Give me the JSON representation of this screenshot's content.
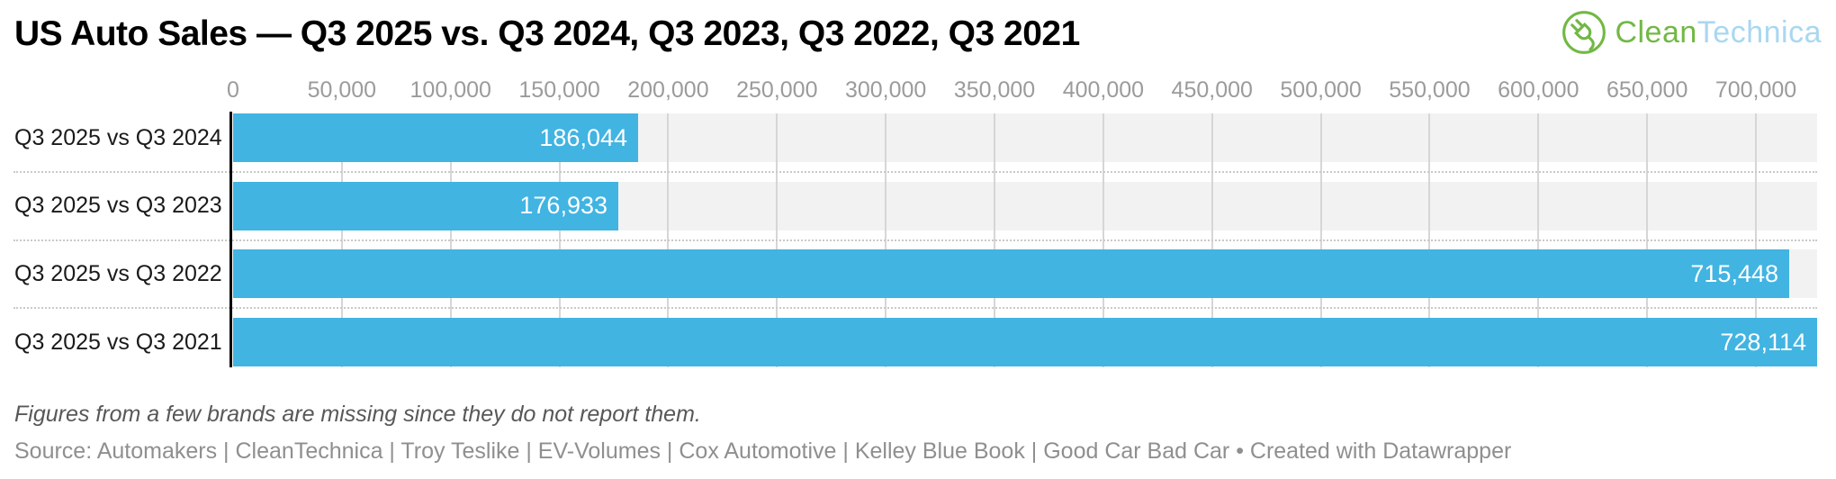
{
  "header": {
    "title": "US Auto Sales — Q3 2025 vs. Q3 2024, Q3 2023, Q3 2022, Q3 2021"
  },
  "logo": {
    "name": "CleanTechnica",
    "icon": "cleantechnica-plug-icon",
    "text_part1": "Clean",
    "text_part2": "Technica",
    "color_green": "#72b844",
    "color_blue": "#a9d7f1"
  },
  "chart_data": {
    "type": "bar",
    "orientation": "horizontal",
    "title": "US Auto Sales — Q3 2025 vs. Q3 2024, Q3 2023, Q3 2022, Q3 2021",
    "categories": [
      "Q3 2025 vs Q3 2024",
      "Q3 2025 vs Q3 2023",
      "Q3 2025 vs Q3 2022",
      "Q3 2025 vs Q3 2021"
    ],
    "values": [
      186044,
      176933,
      715448,
      728114
    ],
    "value_labels": [
      "186,044",
      "176,933",
      "715,448",
      "728,114"
    ],
    "xlim": [
      0,
      728114
    ],
    "ticks": [
      0,
      50000,
      100000,
      150000,
      200000,
      250000,
      300000,
      350000,
      400000,
      450000,
      500000,
      550000,
      600000,
      650000,
      700000
    ],
    "tick_labels": [
      "0",
      "50,000",
      "100,000",
      "150,000",
      "200,000",
      "250,000",
      "300,000",
      "350,000",
      "400,000",
      "450,000",
      "500,000",
      "550,000",
      "600,000",
      "650,000",
      "700,000"
    ],
    "grid": true,
    "legend": false,
    "bar_color": "#41b4e2",
    "band_color": "#f2f2f2",
    "value_label_color": "#ffffff"
  },
  "footer": {
    "note": "Figures from a few brands are missing since they do not report them.",
    "source": "Source: Automakers | CleanTechnica | Troy Teslike | EV-Volumes | Cox Automotive | Kelley Blue Book | Good Car Bad Car • Created with Datawrapper"
  }
}
